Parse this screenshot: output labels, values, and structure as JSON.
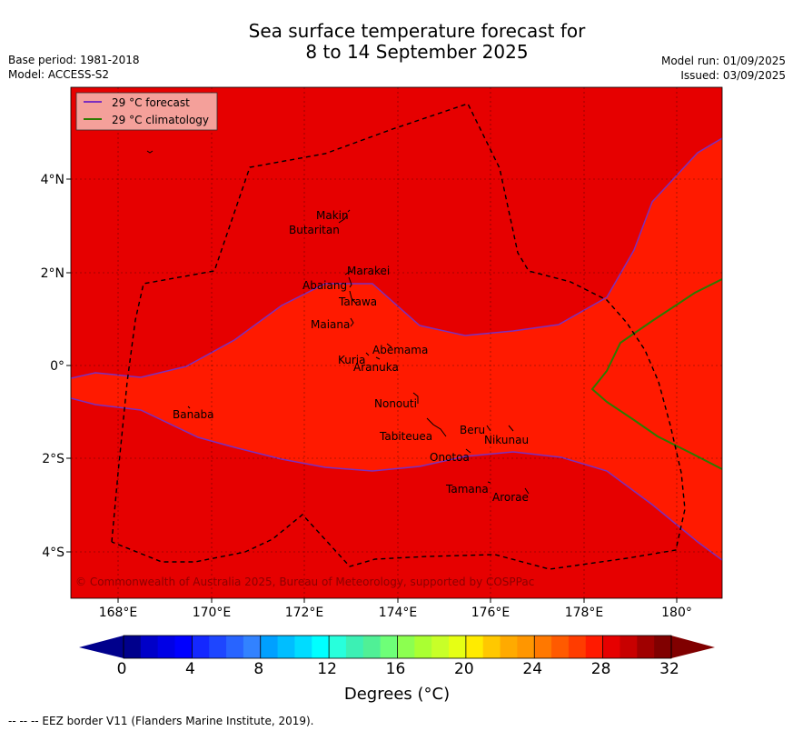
{
  "title_line1": "Sea surface temperature forecast for",
  "title_line2": "8 to 14 September 2025",
  "meta_left": {
    "base_period": "Base period: 1981-2018",
    "model": "Model: ACCESS-S2"
  },
  "meta_right": {
    "model_run": "Model run: 01/09/2025",
    "issued": "Issued: 03/09/2025"
  },
  "legend": {
    "forecast": "29 °C  forecast",
    "climatology": "29 °C  climatology",
    "forecast_color": "#7b2fbe",
    "climatology_color": "#2d7a00"
  },
  "map": {
    "lon_ticks": [
      "168°E",
      "170°E",
      "172°E",
      "174°E",
      "176°E",
      "178°E",
      "180°"
    ],
    "lat_ticks": [
      "4°N",
      "2°N",
      "0°",
      "2°S",
      "4°S"
    ],
    "copyright": "© Commonwealth of Australia 2025, Bureau of Meteorology, supported by COSPPac",
    "colors": {
      "warm_outside": "#e60000",
      "inside_band": "#ff1a00"
    },
    "islands": [
      "Makin",
      "Butaritan",
      "Marakei",
      "Abaiang",
      "Tarawa",
      "Maiana",
      "Abemama",
      "Kuria",
      "Aranuka",
      "Nonouti",
      "Banaba",
      "Tabiteuea",
      "Beru",
      "Nikunau",
      "Onotoa",
      "Tamana",
      "Arorae"
    ]
  },
  "colorbar": {
    "ticks": [
      "0",
      "4",
      "8",
      "12",
      "16",
      "20",
      "24",
      "28",
      "32"
    ],
    "label": "Degrees (°C)",
    "colors": [
      "#00008c",
      "#0000c8",
      "#0000e6",
      "#0000ff",
      "#1428ff",
      "#1e46ff",
      "#2864ff",
      "#3282ff",
      "#00a0ff",
      "#00beff",
      "#00dcff",
      "#00ffff",
      "#28ffdc",
      "#3cf0b4",
      "#50f096",
      "#6eff78",
      "#8cff50",
      "#aaff32",
      "#c8ff28",
      "#e6ff14",
      "#ffeb00",
      "#ffc800",
      "#ffaa00",
      "#ff9600",
      "#ff7800",
      "#ff5a00",
      "#ff3c00",
      "#ff1a00",
      "#e60000",
      "#c80000",
      "#a00000",
      "#800000"
    ],
    "under_color": "#00008c",
    "over_color": "#800000"
  },
  "footer": "--  --  -- EEZ border V11 (Flanders Marine Institute, 2019)."
}
